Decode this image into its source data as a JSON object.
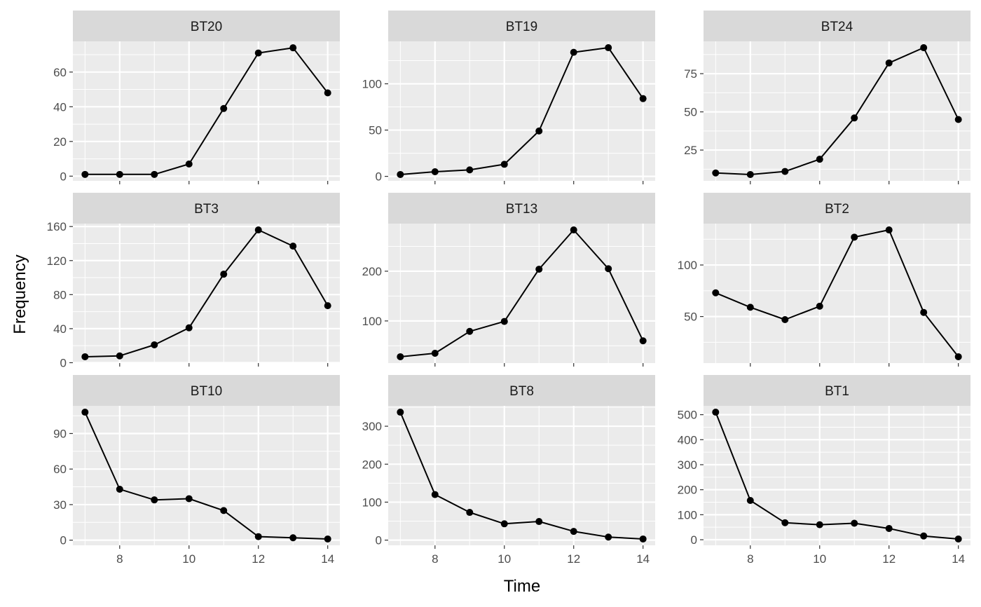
{
  "theme": {
    "panel_bg": "#ebebeb",
    "strip_bg": "#d9d9d9",
    "grid_major": "#ffffff",
    "line_color": "#000000",
    "tick_color": "#333333"
  },
  "chart_data": {
    "type": "line",
    "layout": "facet_wrap 3x3, free y scales",
    "xlabel": "Time",
    "ylabel": "Frequency",
    "x": [
      7,
      8,
      9,
      10,
      11,
      12,
      13,
      14
    ],
    "x_ticks": [
      8,
      10,
      12,
      14
    ],
    "xlim": [
      6.65,
      14.35
    ],
    "markers": true,
    "grid": true,
    "panels": [
      {
        "label": "BT20",
        "values": [
          1,
          1,
          1,
          7,
          39,
          71,
          74,
          48
        ],
        "ylim": [
          -2.7,
          77.7
        ],
        "y_ticks": [
          0,
          20,
          40,
          60
        ]
      },
      {
        "label": "BT19",
        "values": [
          2,
          5,
          7,
          13,
          49,
          134,
          139,
          84
        ],
        "ylim": [
          -4.85,
          145.85
        ],
        "y_ticks": [
          0,
          50,
          100
        ]
      },
      {
        "label": "BT24",
        "values": [
          10,
          9,
          11,
          19,
          46,
          82,
          92,
          45
        ],
        "ylim": [
          4.85,
          96.15
        ],
        "y_ticks": [
          25,
          50,
          75
        ]
      },
      {
        "label": "BT3",
        "values": [
          7,
          8,
          21,
          41,
          104,
          156,
          137,
          67
        ],
        "ylim": [
          -0.45,
          163.45
        ],
        "y_ticks": [
          0,
          40,
          80,
          120,
          160
        ]
      },
      {
        "label": "BT13",
        "values": [
          28,
          35,
          79,
          99,
          204,
          283,
          205,
          60
        ],
        "ylim": [
          15.25,
          295.75
        ],
        "y_ticks": [
          100,
          200
        ]
      },
      {
        "label": "BT2",
        "values": [
          73,
          59,
          47,
          60,
          127,
          134,
          54,
          11
        ],
        "ylim": [
          4.85,
          140.15
        ],
        "y_ticks": [
          50,
          100
        ]
      },
      {
        "label": "BT10",
        "values": [
          108,
          43,
          34,
          35,
          25,
          3,
          2,
          1
        ],
        "ylim": [
          -4.35,
          113.35
        ],
        "y_ticks": [
          0,
          30,
          60,
          90
        ]
      },
      {
        "label": "BT8",
        "values": [
          337,
          120,
          73,
          43,
          49,
          23,
          8,
          3
        ],
        "ylim": [
          -13.7,
          353.7
        ],
        "y_ticks": [
          0,
          100,
          200,
          300
        ]
      },
      {
        "label": "BT1",
        "values": [
          510,
          157,
          68,
          60,
          66,
          45,
          15,
          3
        ],
        "ylim": [
          -22.35,
          535.35
        ],
        "y_ticks": [
          0,
          100,
          200,
          300,
          400,
          500
        ]
      }
    ]
  }
}
